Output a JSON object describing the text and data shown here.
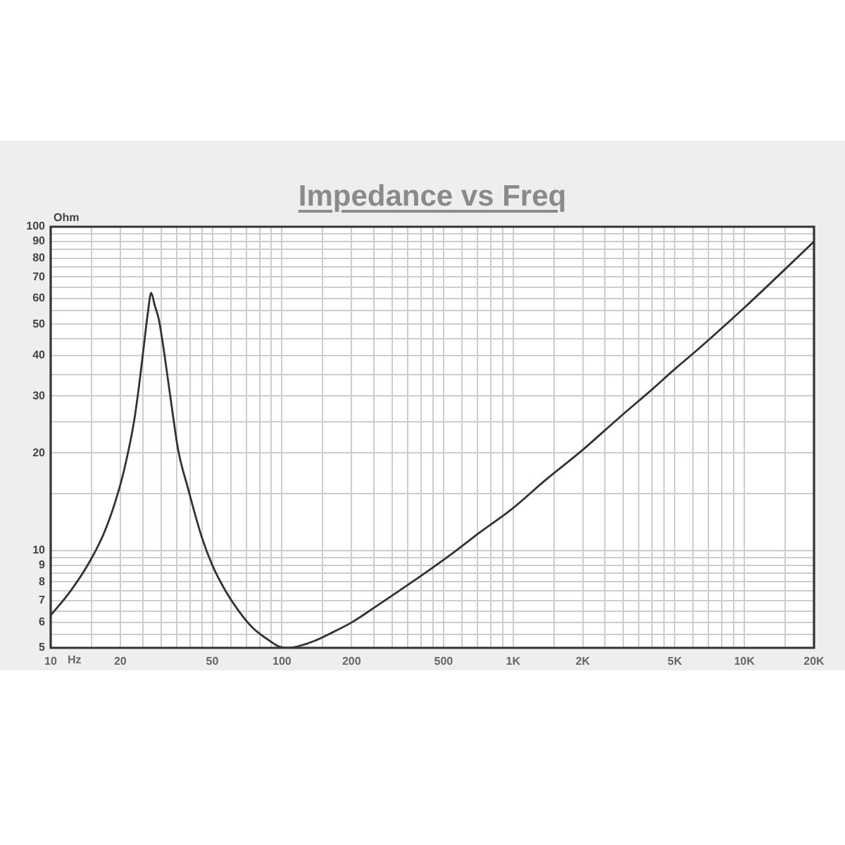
{
  "chart_data": {
    "type": "line",
    "title": "Impedance vs Freq",
    "xlabel": "Hz",
    "ylabel": "Ohm",
    "log": "xy",
    "grid": true,
    "x": [
      10,
      12.2,
      14.7,
      16.9,
      19,
      20.8,
      22.9,
      24,
      25.1,
      26.3,
      27.2,
      28.2,
      29.3,
      30.7,
      32.8,
      35.6,
      39.2,
      45,
      50,
      57,
      65,
      75,
      87,
      97,
      107,
      117,
      138,
      167,
      201,
      254,
      321,
      405,
      537,
      710,
      985,
      1366,
      1990,
      2890,
      4000,
      5060,
      6100,
      10200,
      20000
    ],
    "series": [
      {
        "color": "#333333",
        "values": [
          6.3,
          7.5,
          9.2,
          11.2,
          14.1,
          17.8,
          24.9,
          31.5,
          41,
          54,
          62.5,
          57,
          52,
          42.5,
          30.4,
          20.4,
          15.6,
          11,
          9,
          7.5,
          6.5,
          5.75,
          5.3,
          5.05,
          5,
          5.05,
          5.25,
          5.6,
          6,
          6.7,
          7.5,
          8.4,
          9.7,
          11.3,
          13.4,
          16.4,
          20.4,
          25.8,
          31.5,
          36.6,
          41,
          57,
          90
        ]
      }
    ],
    "xlim": [
      10,
      20000
    ],
    "ylim": [
      5,
      100
    ],
    "xticks": [
      10,
      {
        "value": 15,
        "label": null
      },
      20,
      {
        "value": 25,
        "label": null
      },
      {
        "value": 30,
        "label": null
      },
      {
        "value": 35,
        "label": null
      },
      {
        "value": 40,
        "label": null
      },
      {
        "value": 45,
        "label": null
      },
      50,
      {
        "value": 60,
        "label": null
      },
      {
        "value": 70,
        "label": null
      },
      {
        "value": 80,
        "label": null
      },
      {
        "value": 90,
        "label": null
      },
      100,
      {
        "value": 150,
        "label": null
      },
      200,
      {
        "value": 250,
        "label": null
      },
      {
        "value": 300,
        "label": null
      },
      {
        "value": 350,
        "label": null
      },
      {
        "value": 400,
        "label": null
      },
      {
        "value": 450,
        "label": null
      },
      500,
      {
        "value": 600,
        "label": null
      },
      {
        "value": 700,
        "label": null
      },
      {
        "value": 800,
        "label": null
      },
      {
        "value": 900,
        "label": null
      },
      {
        "value": 1000,
        "label": "1K"
      },
      {
        "value": 1500,
        "label": null
      },
      {
        "value": 2000,
        "label": "2K"
      },
      {
        "value": 2500,
        "label": null
      },
      {
        "value": 3000,
        "label": null
      },
      {
        "value": 3500,
        "label": null
      },
      {
        "value": 4000,
        "label": null
      },
      {
        "value": 4500,
        "label": null
      },
      {
        "value": 5000,
        "label": "5K"
      },
      {
        "value": 6000,
        "label": null
      },
      {
        "value": 7000,
        "label": null
      },
      {
        "value": 8000,
        "label": null
      },
      {
        "value": 9000,
        "label": null
      },
      {
        "value": 10000,
        "label": "10K"
      },
      {
        "value": 15000,
        "label": null
      },
      {
        "value": 20000,
        "label": "20K"
      }
    ],
    "yticks": [
      5,
      {
        "value": 5.5,
        "label": null
      },
      6,
      {
        "value": 6.5,
        "label": null
      },
      7,
      {
        "value": 7.5,
        "label": null
      },
      8,
      {
        "value": 8.5,
        "label": null
      },
      9,
      {
        "value": 9.5,
        "label": null
      },
      10,
      {
        "value": 15,
        "label": null
      },
      20,
      {
        "value": 25,
        "label": null
      },
      30,
      {
        "value": 35,
        "label": null
      },
      40,
      {
        "value": 45,
        "label": null
      },
      50,
      {
        "value": 55,
        "label": null
      },
      60,
      {
        "value": 65,
        "label": null
      },
      70,
      {
        "value": 75,
        "label": null
      },
      80,
      {
        "value": 85,
        "label": null
      },
      90,
      {
        "value": 95,
        "label": null
      },
      100
    ]
  }
}
